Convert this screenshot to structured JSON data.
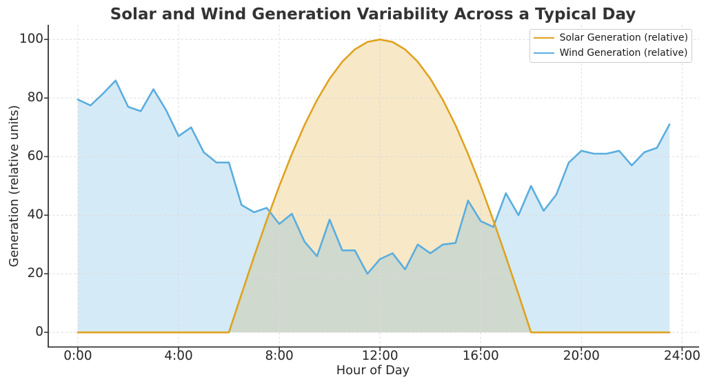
{
  "chart_data": {
    "type": "area",
    "title": "Solar and Wind Generation Variability Across a Typical Day",
    "xlabel": "Hour of Day",
    "ylabel": "Generation (relative units)",
    "xlim": [
      -1.175,
      24.675
    ],
    "ylim": [
      -5,
      105
    ],
    "grid": true,
    "legend_position": "upper right",
    "x": [
      0,
      0.5,
      1,
      1.5,
      2,
      2.5,
      3,
      3.5,
      4,
      4.5,
      5,
      5.5,
      6,
      6.5,
      7,
      7.5,
      8,
      8.5,
      9,
      9.5,
      10,
      10.5,
      11,
      11.5,
      12,
      12.5,
      13,
      13.5,
      14,
      14.5,
      15,
      15.5,
      16,
      16.5,
      17,
      17.5,
      18,
      18.5,
      19,
      19.5,
      20,
      20.5,
      21,
      21.5,
      22,
      22.5,
      23,
      23.5
    ],
    "xticks": {
      "hours": [
        0,
        4,
        8,
        12,
        16,
        20,
        24
      ],
      "labels": [
        "0:00",
        "4:00",
        "8:00",
        "12:00",
        "16:00",
        "20:00",
        "24:00"
      ]
    },
    "yticks": [
      0,
      20,
      40,
      60,
      80,
      100
    ],
    "series": [
      {
        "name": "Solar Generation (relative)",
        "color": "#DFA21E",
        "fill_opacity": 0.25,
        "values": [
          0,
          0,
          0,
          0,
          0,
          0,
          0,
          0,
          0,
          0,
          0,
          0,
          0,
          13.05,
          25.88,
          38.27,
          50,
          60.88,
          70.71,
          79.34,
          86.6,
          92.39,
          96.59,
          99.14,
          100,
          99.14,
          96.59,
          92.39,
          86.6,
          79.34,
          70.71,
          60.88,
          50,
          38.27,
          25.88,
          13.05,
          0,
          0,
          0,
          0,
          0,
          0,
          0,
          0,
          0,
          0,
          0,
          0
        ]
      },
      {
        "name": "Wind Generation (relative)",
        "color": "#59ADDE",
        "fill_opacity": 0.25,
        "values": [
          79.5,
          77.5,
          81.5,
          86,
          77,
          75.5,
          83,
          76,
          67,
          70,
          61.5,
          58,
          58,
          43.5,
          41,
          42.5,
          37,
          40.5,
          31,
          26,
          38.5,
          28,
          28,
          20,
          25,
          27,
          21.5,
          30,
          27,
          30,
          30.5,
          45,
          38,
          36,
          47.5,
          40,
          50,
          41.5,
          47,
          58,
          62,
          61,
          61,
          62,
          57,
          61.5,
          63,
          71
        ]
      }
    ]
  }
}
